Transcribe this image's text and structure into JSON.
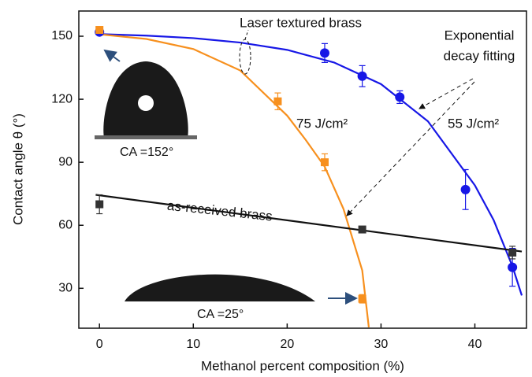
{
  "chart_data": {
    "type": "scatter",
    "x_label": "Methanol percent composition (%)",
    "y_label": "Contact angle θ (°)",
    "xlim": [
      -2.2,
      45.5
    ],
    "ylim": [
      11,
      162
    ],
    "xticks": [
      0,
      10,
      20,
      30,
      40
    ],
    "yticks": [
      30,
      60,
      90,
      120,
      150
    ],
    "series": [
      {
        "name": "55 J/cm²",
        "color": "#1717e6",
        "marker": "circle",
        "x": [
          0,
          24,
          28,
          32,
          39,
          44
        ],
        "values": [
          152,
          142,
          131,
          121,
          77,
          40
        ],
        "errors": [
          1,
          4.5,
          5,
          3,
          9.5,
          9
        ]
      },
      {
        "name": "75 J/cm²",
        "color": "#f7901e",
        "marker": "square",
        "x": [
          0,
          19,
          24,
          28
        ],
        "values": [
          153,
          119,
          90,
          25
        ],
        "errors": [
          1,
          4,
          4,
          2
        ]
      },
      {
        "name": "as-received brass",
        "color": "#333333",
        "marker": "square",
        "x": [
          0,
          28,
          44
        ],
        "values": [
          70,
          58,
          47
        ],
        "errors": [
          4.5,
          1,
          3
        ]
      }
    ],
    "fits": [
      {
        "color": "#1717e6",
        "x": [
          0,
          5,
          10,
          15,
          20,
          25,
          30,
          35,
          40,
          42,
          44,
          45
        ],
        "values": [
          151,
          150.3,
          149.1,
          147,
          143.5,
          137.5,
          127.2,
          109.5,
          79,
          62.5,
          40.5,
          26.6
        ]
      },
      {
        "color": "#f7901e",
        "x": [
          0,
          5,
          10,
          15,
          20,
          22,
          24,
          26,
          28,
          28.7
        ],
        "values": [
          150.9,
          148.7,
          143.9,
          133.7,
          112.2,
          100.5,
          87.9,
          67.8,
          38.5,
          11.4
        ]
      },
      {
        "color": "#111111",
        "x": [
          -0.4,
          45
        ],
        "values": [
          74.5,
          47.5
        ]
      }
    ],
    "annotations": {
      "laser": "Laser textured brass",
      "fit1": "Exponential",
      "fit2": "decay fitting",
      "ca1": "CA =152°",
      "ca2": "CA =25°"
    }
  }
}
